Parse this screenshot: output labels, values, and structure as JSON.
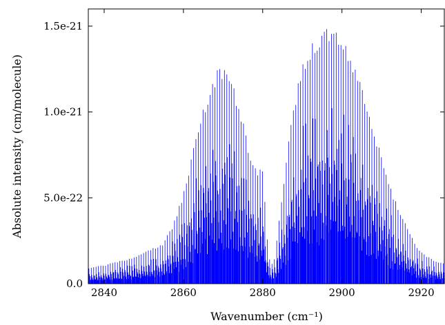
{
  "chart_data": {
    "type": "line",
    "xlabel": "Wavenumber (cm⁻¹)",
    "ylabel": "Absolute intensity (cm/molecule)",
    "xlim": [
      2836,
      2926
    ],
    "ylim": [
      0,
      1.6e-21
    ],
    "x_ticks": [
      2840,
      2860,
      2880,
      2900,
      2920
    ],
    "x_tick_labels": [
      "2840",
      "2860",
      "2880",
      "2900",
      "2920"
    ],
    "y_ticks": [
      0,
      5e-22,
      1e-21,
      1.5e-21
    ],
    "y_tick_labels": [
      "0.0",
      "5.0e-22",
      "1.0e-21",
      "1.5e-21"
    ],
    "grid": false,
    "series": [
      {
        "color": "#0000ff",
        "line_spacing_cm-1": 0.6,
        "peaks": [
          {
            "x": 2869.5,
            "y": 1.28e-21
          },
          {
            "x": 2897.0,
            "y": 1.49e-21
          }
        ],
        "x": [
          2836,
          2840,
          2845,
          2850,
          2855,
          2858,
          2860,
          2862,
          2864,
          2866,
          2868,
          2869.5,
          2871,
          2873,
          2875,
          2877,
          2879,
          2880,
          2881,
          2882,
          2883,
          2885,
          2887,
          2889,
          2891,
          2893,
          2895,
          2897,
          2899,
          2901,
          2903,
          2905,
          2907,
          2909,
          2911,
          2913,
          2915,
          2917,
          2919,
          2921,
          2923,
          2926
        ],
        "y_envelope": [
          9e-23,
          1.1e-22,
          1.4e-22,
          1.8e-22,
          2.4e-22,
          3.8e-22,
          5.4e-22,
          7.4e-22,
          9.4e-22,
          1.1e-21,
          1.23e-21,
          1.28e-21,
          1.25e-21,
          1.13e-21,
          9.5e-22,
          7.3e-22,
          6.5e-22,
          7e-22,
          3e-22,
          1e-22,
          1.5e-22,
          5.5e-22,
          9.5e-22,
          1.2e-21,
          1.36e-21,
          1.44e-21,
          1.48e-21,
          1.49e-21,
          1.46e-21,
          1.4e-21,
          1.29e-21,
          1.15e-21,
          1e-21,
          8.3e-22,
          6.8e-22,
          5.2e-22,
          4e-22,
          3e-22,
          2.2e-22,
          1.7e-22,
          1.4e-22,
          1.2e-22
        ]
      }
    ]
  }
}
